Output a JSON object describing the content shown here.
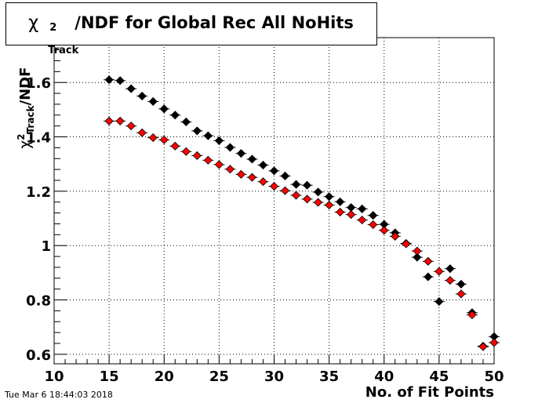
{
  "chart_data": {
    "type": "scatter",
    "title": {
      "symbol": "χ",
      "superscript": "2",
      "subscript": "Track",
      "text": "/NDF for Global Rec All NoHits"
    },
    "xlabel": "No. of Fit Points",
    "ylabel": {
      "symbol": "χ",
      "superscript": "2",
      "subscript": "Track",
      "text": "/NDF"
    },
    "xlim": [
      10,
      50
    ],
    "ylim": [
      0.565,
      1.765
    ],
    "xticks": [
      10,
      15,
      20,
      25,
      30,
      35,
      40,
      45,
      50
    ],
    "yticks": [
      0.6,
      0.8,
      1,
      1.2,
      1.4,
      1.6
    ],
    "ytick_labels": [
      "0.6",
      "0.8",
      "1",
      "1.2",
      "1.4",
      "1.6"
    ],
    "grid": true,
    "series": [
      {
        "color": "#000000",
        "x": [
          15,
          16,
          17,
          18,
          19,
          20,
          21,
          22,
          23,
          24,
          25,
          26,
          27,
          28,
          29,
          30,
          31,
          32,
          33,
          34,
          35,
          36,
          37,
          38,
          39,
          40,
          41,
          42,
          43,
          44,
          45,
          46,
          47,
          48,
          49,
          50
        ],
        "y": [
          1.61,
          1.607,
          1.577,
          1.55,
          1.53,
          1.503,
          1.48,
          1.455,
          1.422,
          1.404,
          1.386,
          1.361,
          1.339,
          1.318,
          1.296,
          1.275,
          1.256,
          1.225,
          1.222,
          1.197,
          1.18,
          1.161,
          1.14,
          1.135,
          1.111,
          1.078,
          1.047,
          1.008,
          0.957,
          0.885,
          0.794,
          0.915,
          0.858,
          0.753,
          0.63,
          0.665
        ]
      },
      {
        "color": "#ff0000",
        "x": [
          15,
          16,
          17,
          18,
          19,
          20,
          21,
          22,
          23,
          24,
          25,
          26,
          27,
          28,
          29,
          30,
          31,
          32,
          33,
          34,
          35,
          36,
          37,
          38,
          39,
          40,
          41,
          42,
          43,
          44,
          45,
          46,
          47,
          48,
          49,
          50
        ],
        "y": [
          1.458,
          1.458,
          1.44,
          1.415,
          1.397,
          1.389,
          1.366,
          1.346,
          1.331,
          1.314,
          1.298,
          1.281,
          1.262,
          1.251,
          1.235,
          1.218,
          1.202,
          1.185,
          1.171,
          1.159,
          1.149,
          1.123,
          1.114,
          1.094,
          1.077,
          1.056,
          1.034,
          1.006,
          0.98,
          0.942,
          0.905,
          0.872,
          0.822,
          0.745,
          0.628,
          0.643
        ]
      }
    ]
  },
  "footer": {
    "timestamp": "Tue Mar  6 18:44:03 2018"
  }
}
